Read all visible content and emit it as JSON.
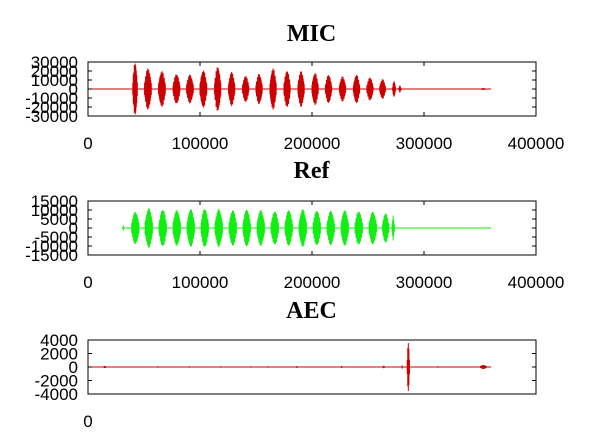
{
  "chart_data": [
    {
      "type": "line",
      "title": "MIC",
      "series": [
        {
          "color": "#cc0000"
        }
      ],
      "xlim": [
        0,
        400000
      ],
      "ylim": [
        -30000,
        30000
      ],
      "xticks": [
        0,
        100000,
        200000,
        300000,
        400000
      ],
      "xtick_labels": [
        "0",
        "100000",
        "200000",
        "300000",
        "400000"
      ],
      "yticks": [
        30000,
        20000,
        10000,
        0,
        -10000,
        -20000,
        -30000
      ],
      "ytick_labels": [
        "30000",
        "20000",
        "10000",
        "0",
        "-10000",
        "-20000",
        "-30000"
      ],
      "bursts": [
        {
          "x": [
            40000,
            44000
          ],
          "amp": 30000
        },
        {
          "x": [
            50500,
            56500
          ],
          "amp": 23000
        },
        {
          "x": [
            63000,
            69000
          ],
          "amp": 20000
        },
        {
          "x": [
            76000,
            82000
          ],
          "amp": 17000
        },
        {
          "x": [
            88000,
            94000
          ],
          "amp": 16000
        },
        {
          "x": [
            100000,
            106000
          ],
          "amp": 21000
        },
        {
          "x": [
            113000,
            118500
          ],
          "amp": 25000
        },
        {
          "x": [
            125500,
            131000
          ],
          "amp": 19000
        },
        {
          "x": [
            138000,
            143500
          ],
          "amp": 15000
        },
        {
          "x": [
            150000,
            155500
          ],
          "amp": 17000
        },
        {
          "x": [
            162500,
            168000
          ],
          "amp": 23000
        },
        {
          "x": [
            175000,
            180500
          ],
          "amp": 21000
        },
        {
          "x": [
            187500,
            193000
          ],
          "amp": 20000
        },
        {
          "x": [
            200000,
            205500
          ],
          "amp": 18000
        },
        {
          "x": [
            212000,
            217500
          ],
          "amp": 16000
        },
        {
          "x": [
            224500,
            230000
          ],
          "amp": 14000
        },
        {
          "x": [
            237000,
            242500
          ],
          "amp": 16000
        },
        {
          "x": [
            249000,
            254500
          ],
          "amp": 13000
        },
        {
          "x": [
            260500,
            265500
          ],
          "amp": 11000
        },
        {
          "x": [
            272000,
            274500
          ],
          "amp": 9000
        },
        {
          "x": [
            277500,
            279500
          ],
          "amp": 4000
        },
        {
          "x": [
            350000,
            356000
          ],
          "amp": 1000
        }
      ],
      "baseline_x": [
        0,
        360000
      ]
    },
    {
      "type": "line",
      "title": "Ref",
      "series": [
        {
          "color": "#11ee11"
        }
      ],
      "xlim": [
        0,
        400000
      ],
      "ylim": [
        -15000,
        15000
      ],
      "xticks": [
        0,
        100000,
        200000,
        300000,
        400000
      ],
      "xtick_labels": [
        "0",
        "100000",
        "200000",
        "300000",
        "400000"
      ],
      "yticks": [
        15000,
        10000,
        5000,
        0,
        -5000,
        -10000,
        -15000
      ],
      "ytick_labels": [
        "15000",
        "10000",
        "5000",
        "0",
        "-5000",
        "-10000",
        "-15000"
      ],
      "bursts": [
        {
          "x": [
            31000,
            32000
          ],
          "amp": 1500
        },
        {
          "x": [
            39000,
            45500
          ],
          "amp": 9000
        },
        {
          "x": [
            51000,
            57500
          ],
          "amp": 11000
        },
        {
          "x": [
            63500,
            70000
          ],
          "amp": 10500
        },
        {
          "x": [
            76000,
            82500
          ],
          "amp": 10000
        },
        {
          "x": [
            88500,
            95000
          ],
          "amp": 10500
        },
        {
          "x": [
            101000,
            107500
          ],
          "amp": 11000
        },
        {
          "x": [
            113500,
            120000
          ],
          "amp": 10500
        },
        {
          "x": [
            126000,
            132500
          ],
          "amp": 10000
        },
        {
          "x": [
            138500,
            145000
          ],
          "amp": 10500
        },
        {
          "x": [
            151000,
            157500
          ],
          "amp": 10000
        },
        {
          "x": [
            163500,
            170000
          ],
          "amp": 9500
        },
        {
          "x": [
            176000,
            182500
          ],
          "amp": 10000
        },
        {
          "x": [
            188500,
            195000
          ],
          "amp": 10500
        },
        {
          "x": [
            201000,
            207500
          ],
          "amp": 10000
        },
        {
          "x": [
            213500,
            220000
          ],
          "amp": 9500
        },
        {
          "x": [
            226000,
            232500
          ],
          "amp": 10000
        },
        {
          "x": [
            238500,
            245000
          ],
          "amp": 9500
        },
        {
          "x": [
            251000,
            257500
          ],
          "amp": 9000
        },
        {
          "x": [
            263000,
            268500
          ],
          "amp": 8500
        },
        {
          "x": [
            271500,
            273500
          ],
          "amp": 7000
        }
      ],
      "baseline_x": [
        30000,
        360000
      ]
    },
    {
      "type": "line",
      "title": "AEC",
      "series": [
        {
          "color": "#cc0000"
        }
      ],
      "xlim": [
        0,
        400000
      ],
      "ylim": [
        -4000,
        4000
      ],
      "xticks": [
        0
      ],
      "xtick_labels": [
        "0"
      ],
      "yticks": [
        4000,
        2000,
        0,
        -2000,
        -4000
      ],
      "ytick_labels": [
        "4000",
        "2000",
        "0",
        "-2000",
        "-4000"
      ],
      "bursts": [
        {
          "x": [
            14000,
            16000
          ],
          "amp": 180
        },
        {
          "x": [
            62000,
            63000
          ],
          "amp": 140
        },
        {
          "x": [
            90000,
            91000
          ],
          "amp": 120
        },
        {
          "x": [
            118000,
            119000
          ],
          "amp": 120
        },
        {
          "x": [
            145000,
            146000
          ],
          "amp": 120
        },
        {
          "x": [
            160000,
            161000
          ],
          "amp": 140
        },
        {
          "x": [
            186000,
            187000
          ],
          "amp": 150
        },
        {
          "x": [
            226000,
            227000
          ],
          "amp": 170
        },
        {
          "x": [
            263000,
            265000
          ],
          "amp": 180
        },
        {
          "x": [
            280000,
            281000
          ],
          "amp": 250
        },
        {
          "x": [
            285000,
            287000
          ],
          "amp": 3800
        },
        {
          "x": [
            312000,
            313000
          ],
          "amp": 150
        },
        {
          "x": [
            350000,
            356000
          ],
          "amp": 300
        }
      ],
      "baseline_x": [
        0,
        360000
      ]
    }
  ]
}
